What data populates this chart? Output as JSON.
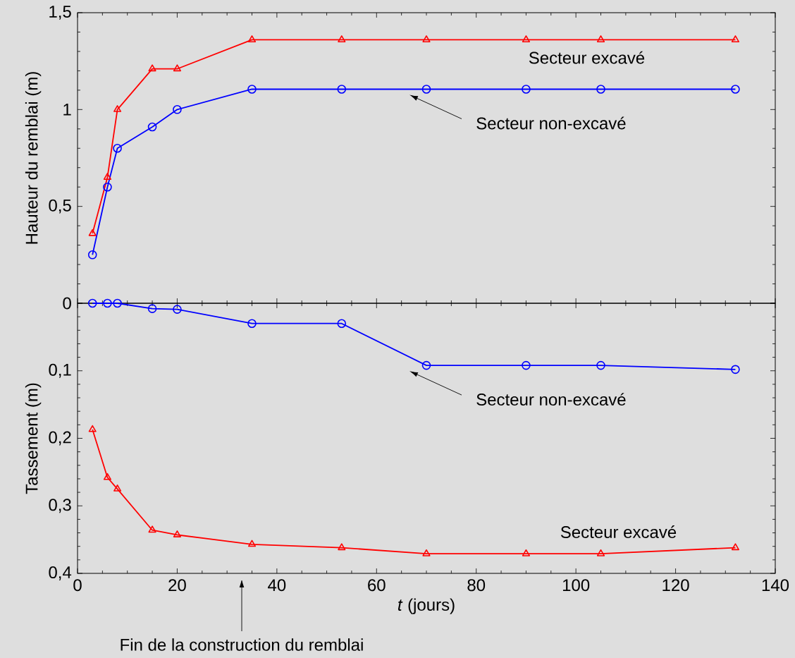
{
  "chart_data": [
    {
      "type": "line",
      "ylabel": "Hauteur du remblai (m)",
      "xlim": [
        0,
        140
      ],
      "xticks": [
        0,
        20,
        40,
        60,
        80,
        100,
        120,
        140
      ],
      "ylim": [
        0,
        1.5
      ],
      "yticks": [
        {
          "value": 0,
          "label": null
        },
        {
          "value": 0.5,
          "label": "0,5"
        },
        1,
        {
          "value": 1.5,
          "label": "1,5"
        }
      ],
      "tick_labels": "y",
      "series": [
        {
          "name": "Secteur excavé",
          "color": "#ff0000",
          "marker": "triangle",
          "x": [
            3,
            6,
            8,
            15,
            20,
            35,
            53,
            70,
            90,
            105,
            132
          ],
          "values": [
            0.36,
            0.65,
            1.0,
            1.21,
            1.21,
            1.36,
            1.36,
            1.36,
            1.36,
            1.36,
            1.36
          ]
        },
        {
          "name": "Secteur non-excavé",
          "color": "#0000ff",
          "marker": "circle",
          "x": [
            3,
            6,
            8,
            15,
            20,
            35,
            53,
            70,
            90,
            105,
            132
          ],
          "values": [
            0.25,
            0.6,
            0.8,
            0.91,
            1.0,
            1.105,
            1.105,
            1.105,
            1.105,
            1.105,
            1.105
          ]
        }
      ]
    },
    {
      "type": "line",
      "xlabel": "*t* (jours)",
      "ylabel": "Tassement (m)",
      "xlim": [
        0,
        140
      ],
      "xticks": [
        0,
        20,
        40,
        60,
        80,
        100,
        120,
        140
      ],
      "ylim": [
        0.4,
        0
      ],
      "yticks": [
        0,
        {
          "value": 0.1,
          "label": "0,1"
        },
        {
          "value": 0.2,
          "label": "0,2"
        },
        {
          "value": 0.3,
          "label": "0,3"
        },
        {
          "value": 0.4,
          "label": "0,4"
        }
      ],
      "annotations": [
        "Fin de la construction du remblai"
      ],
      "series": [
        {
          "name": "Secteur non-excavé",
          "color": "#0000ff",
          "marker": "circle",
          "x": [
            3,
            6,
            8,
            15,
            20,
            35,
            53,
            70,
            90,
            105,
            132
          ],
          "values": [
            0,
            0,
            0,
            0.008,
            0.009,
            0.03,
            0.03,
            0.092,
            0.092,
            0.092,
            0.098
          ]
        },
        {
          "name": "Secteur excavé",
          "color": "#ff0000",
          "marker": "triangle",
          "x": [
            3,
            6,
            8,
            15,
            20,
            35,
            53,
            70,
            90,
            105,
            132
          ],
          "values": [
            0.187,
            0.258,
            0.275,
            0.336,
            0.343,
            0.357,
            0.362,
            0.371,
            0.371,
            0.371,
            0.362
          ]
        }
      ]
    }
  ]
}
